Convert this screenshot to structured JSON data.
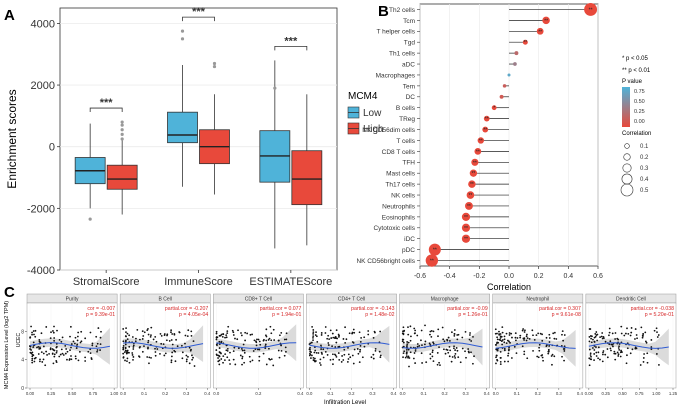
{
  "chart_data": [
    {
      "panel": "A",
      "type": "boxplot",
      "ylabel": "Enrichment scores",
      "ylim": [
        -4000,
        4500
      ],
      "yticks": [
        -4000,
        -2000,
        0,
        2000,
        4000
      ],
      "categories": [
        "StromalScore",
        "ImmuneScore",
        "ESTIMATEScore"
      ],
      "legend_title": "MCM4",
      "series": [
        {
          "name": "Low",
          "color": "#4fb3d9",
          "boxes": [
            {
              "lower": -2000,
              "q1": -1200,
              "median": -780,
              "q3": -350,
              "upper": 750,
              "outliers": [
                -2350
              ]
            },
            {
              "lower": -1300,
              "q1": 130,
              "median": 380,
              "q3": 1120,
              "upper": 2650,
              "outliers": [
                3750,
                3500
              ]
            },
            {
              "lower": -3300,
              "q1": -1150,
              "median": -300,
              "q3": 520,
              "upper": 2800,
              "outliers": [
                1900
              ]
            }
          ]
        },
        {
          "name": "High",
          "color": "#e8493b",
          "boxes": [
            {
              "lower": -2200,
              "q1": -1380,
              "median": -1050,
              "q3": -600,
              "upper": 300,
              "outliers": [
                250,
                400,
                550,
                700,
                800
              ]
            },
            {
              "lower": -1550,
              "q1": -550,
              "median": 0,
              "q3": 550,
              "upper": 1700,
              "outliers": [
                2700,
                2600
              ]
            },
            {
              "lower": -3200,
              "q1": -1880,
              "median": -1050,
              "q3": -130,
              "upper": 1700,
              "outliers": []
            }
          ]
        }
      ],
      "significance": [
        "***",
        "***",
        "***"
      ]
    },
    {
      "panel": "B",
      "type": "lollipop",
      "xlabel": "Correlation",
      "xlim": [
        -0.6,
        0.6
      ],
      "xticks": [
        "-0.6",
        "-0.4",
        "-0.2",
        "0.0",
        "0.2",
        "0.4",
        "0.6"
      ],
      "categories": [
        "Th2 cells",
        "Tcm",
        "T helper cells",
        "Tgd",
        "Th1 cells",
        "aDC",
        "Macrophages",
        "Tem",
        "DC",
        "B cells",
        "TReg",
        "NK CD56dim cells",
        "T cells",
        "CD8 T cells",
        "TFH",
        "Mast cells",
        "Th17 cells",
        "NK cells",
        "Neutrophils",
        "Eosinophils",
        "Cytotoxic cells",
        "iDC",
        "pDC",
        "NK CD56bright cells"
      ],
      "values": [
        0.55,
        0.25,
        0.21,
        0.11,
        0.05,
        0.04,
        0.0,
        -0.03,
        -0.05,
        -0.1,
        -0.15,
        -0.16,
        -0.19,
        -0.21,
        -0.23,
        -0.24,
        -0.25,
        -0.26,
        -0.27,
        -0.29,
        -0.29,
        -0.29,
        -0.5,
        -0.52
      ],
      "p_values": [
        0.0,
        0.0,
        0.0,
        0.0,
        0.3,
        0.5,
        0.9,
        0.2,
        0.15,
        0.0,
        0.0,
        0.0,
        0.0,
        0.0,
        0.0,
        0.0,
        0.0,
        0.0,
        0.0,
        0.0,
        0.0,
        0.0,
        0.0,
        0.0
      ],
      "labels": [
        "**",
        "**",
        "**",
        "**",
        "",
        "",
        "",
        "",
        "",
        "*",
        "**",
        "**",
        "**",
        "**",
        "**",
        "**",
        "**",
        "**",
        "**",
        "**",
        "**",
        "**",
        "**",
        "**"
      ],
      "legend": {
        "sig1": "* p < 0.05",
        "sig2": "** p < 0.01",
        "p_title": "P value",
        "p_ticks": [
          "0.75",
          "0.50",
          "0.25",
          "0.00"
        ],
        "corr_title": "Correlation",
        "corr_values": [
          "0.1",
          "0.2",
          "0.3",
          "0.4",
          "0.5"
        ],
        "color_low_p": "#e8493b",
        "color_high_p": "#4fb3d9"
      }
    },
    {
      "panel": "C",
      "type": "scatter",
      "ylabel": "MCM4 Expression Level (log2 TPM)",
      "xlabel": "Infiltration Level",
      "side_label": "UCEC",
      "ylim": [
        0,
        12
      ],
      "yticks": [
        "0",
        "4",
        "8"
      ],
      "facets": [
        {
          "title": "Purity",
          "stat1": "cor = -0.007",
          "stat2": "p = 9.39e-01",
          "xlim": [
            0,
            1
          ],
          "xticks": [
            "0.00",
            "0.25",
            "0.50",
            "0.75",
            "1.00"
          ]
        },
        {
          "title": "B Cell",
          "stat1": "partial.cor = -0.207",
          "stat2": "p = 4.05e-04",
          "xlim": [
            0,
            0.4
          ],
          "xticks": [
            "0.0",
            "0.1",
            "0.2",
            "0.3",
            "0.4"
          ]
        },
        {
          "title": "CD8+ T Cell",
          "stat1": "partial.cor = 0.077",
          "stat2": "p = 1.94e-01",
          "xlim": [
            0,
            0.4
          ],
          "xticks": [
            "0.0",
            "0.2",
            "0.4"
          ]
        },
        {
          "title": "CD4+ T Cell",
          "stat1": "partial.cor = -0.143",
          "stat2": "p = 1.48e-02",
          "xlim": [
            0,
            0.4
          ],
          "xticks": [
            "0.0",
            "0.1",
            "0.2",
            "0.3",
            "0.4"
          ]
        },
        {
          "title": "Macrophage",
          "stat1": "partial.cor = -0.09",
          "stat2": "p = 1.26e-01",
          "xlim": [
            0,
            0.4
          ],
          "xticks": [
            "0.0",
            "0.1",
            "0.2",
            "0.3",
            "0.4"
          ]
        },
        {
          "title": "Neutrophil",
          "stat1": "partial.cor = 0.307",
          "stat2": "p = 9.61e-08",
          "xlim": [
            0,
            0.4
          ],
          "xticks": [
            "0.0",
            "0.1",
            "0.2",
            "0.3",
            "0.4"
          ]
        },
        {
          "title": "Dendritic Cell",
          "stat1": "partial.cor = -0.038",
          "stat2": "p = 5.20e-01",
          "xlim": [
            0,
            1.25
          ],
          "xticks": [
            "0.00",
            "0.25",
            "0.50",
            "0.75",
            "1.00",
            "1.25"
          ]
        }
      ]
    }
  ],
  "panel_labels": {
    "a": "A",
    "b": "B",
    "c": "C"
  }
}
